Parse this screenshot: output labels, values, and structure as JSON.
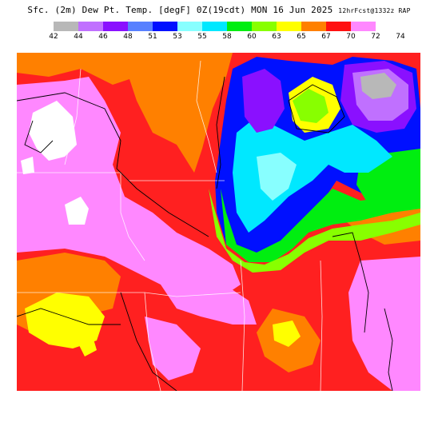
{
  "title": {
    "main": "Sfc. (2m) Dew Pt. Temp. [degF] 0Z(19cdt) MON 16 Jun 2025",
    "run": "12hrFcst@1332z RAP"
  },
  "legend": {
    "items": [
      {
        "label": "42",
        "color": "#b8b8b8"
      },
      {
        "label": "44",
        "color": "#c070ff"
      },
      {
        "label": "46",
        "color": "#8a10ff"
      },
      {
        "label": "48",
        "color": "#5880ff"
      },
      {
        "label": "51",
        "color": "#0010ff"
      },
      {
        "label": "53",
        "color": "#88ffff"
      },
      {
        "label": "55",
        "color": "#00e8ff"
      },
      {
        "label": "58",
        "color": "#00ee10"
      },
      {
        "label": "60",
        "color": "#88ff00"
      },
      {
        "label": "63",
        "color": "#ffff00"
      },
      {
        "label": "65",
        "color": "#ff8000"
      },
      {
        "label": "67",
        "color": "#ff1010"
      },
      {
        "label": "70",
        "color": "#ff88ff"
      },
      {
        "label": "72",
        "color": "#ffffff"
      },
      {
        "label": "74",
        "color": "#ffffff"
      }
    ]
  }
}
